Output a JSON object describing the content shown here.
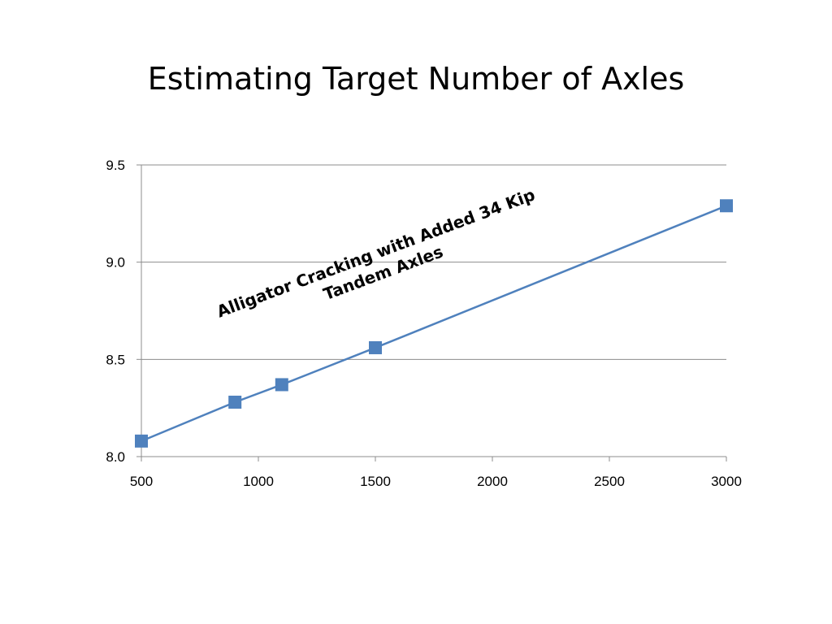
{
  "slide": {
    "title": "Estimating Target Number of Axles"
  },
  "chart_data": {
    "type": "line",
    "title": "",
    "xlabel": "",
    "ylabel": "",
    "xlim": [
      500,
      3000
    ],
    "ylim": [
      8.0,
      9.5
    ],
    "x_ticks": [
      "500",
      "1000",
      "1500",
      "2000",
      "2500",
      "3000"
    ],
    "y_ticks": [
      "8.0",
      "8.5",
      "9.0",
      "9.5"
    ],
    "grid": "horizontal",
    "legend": "none",
    "series": [
      {
        "color": "#4f81bd",
        "marker": "square",
        "points": [
          {
            "x": 500,
            "y": 8.08
          },
          {
            "x": 900,
            "y": 8.28
          },
          {
            "x": 1100,
            "y": 8.37
          },
          {
            "x": 1500,
            "y": 8.56
          },
          {
            "x": 3000,
            "y": 9.29
          }
        ]
      }
    ],
    "annotation": {
      "lines": [
        "Alligator Cracking with Added 34 Kip",
        "Tandem Axles"
      ]
    }
  }
}
